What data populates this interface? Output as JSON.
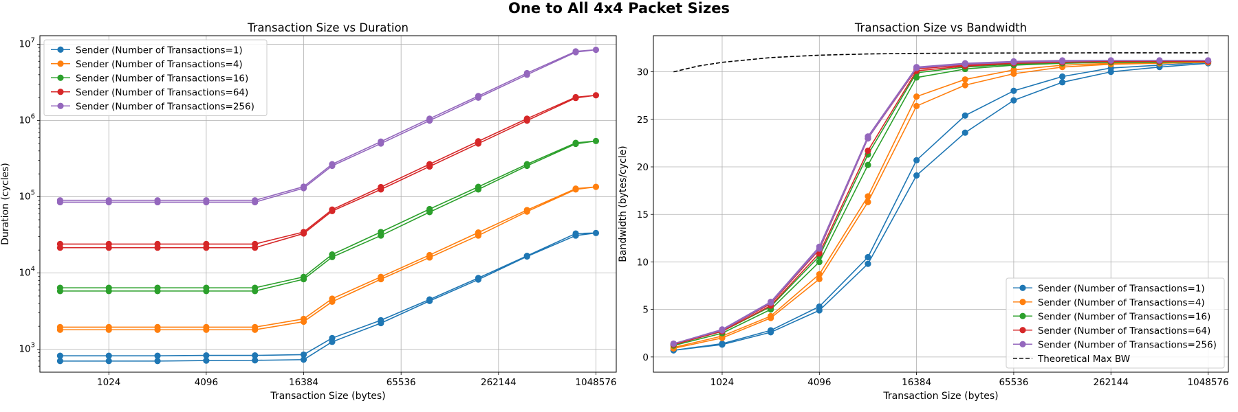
{
  "figure": {
    "title": "One to All 4x4 Packet Sizes"
  },
  "chart_data": [
    {
      "type": "line",
      "title": "Transaction Size vs Duration",
      "xlabel": "Transaction Size (bytes)",
      "ylabel": "Duration (cycles)",
      "xscale": "log2",
      "yscale": "log10",
      "xlim": [
        384,
        1400000
      ],
      "ylim": [
        500,
        13000000
      ],
      "xticks": [
        1024,
        4096,
        16384,
        65536,
        262144,
        1048576
      ],
      "xtick_labels": [
        "1024",
        "4096",
        "16384",
        "65536",
        "262144",
        "1048576"
      ],
      "yticks": [
        1000,
        10000,
        100000,
        1000000,
        10000000
      ],
      "ytick_labels": [
        {
          "base": "10",
          "exp": "3"
        },
        {
          "base": "10",
          "exp": "4"
        },
        {
          "base": "10",
          "exp": "5"
        },
        {
          "base": "10",
          "exp": "6"
        },
        {
          "base": "10",
          "exp": "7"
        }
      ],
      "grid": true,
      "legend_position": "upper left",
      "series": [
        {
          "name": "Sender (Number of Transactions=1)",
          "color": "#1f77b4",
          "x": [
            512,
            1024,
            2048,
            4096,
            8192,
            16384,
            24576,
            49152,
            98304,
            196608,
            393216,
            786432,
            1048576,
            786432,
            393216,
            196608,
            98304,
            49152,
            24576,
            16384,
            8192,
            4096,
            2048,
            1024,
            512
          ],
          "y": [
            700,
            700,
            700,
            710,
            715,
            730,
            1250,
            2200,
            4300,
            8200,
            16500,
            31000,
            33500,
            33000,
            16800,
            8600,
            4500,
            2400,
            1400,
            850,
            830,
            830,
            820,
            820,
            820
          ]
        },
        {
          "name": "Sender (Number of Transactions=4)",
          "color": "#ff7f0e",
          "x": [
            512,
            1024,
            2048,
            4096,
            8192,
            16384,
            24576,
            49152,
            98304,
            196608,
            393216,
            786432,
            1048576,
            786432,
            393216,
            196608,
            98304,
            49152,
            24576,
            16384,
            8192,
            4096,
            2048,
            1024,
            512
          ],
          "y": [
            1800,
            1800,
            1800,
            1800,
            1800,
            2300,
            4200,
            8300,
            16000,
            31000,
            64000,
            125000,
            135000,
            128000,
            67000,
            34000,
            17200,
            8900,
            4600,
            2500,
            1950,
            1950,
            1950,
            1950,
            1950
          ]
        },
        {
          "name": "Sender (Number of Transactions=16)",
          "color": "#2ca02c",
          "x": [
            512,
            1024,
            2048,
            4096,
            8192,
            16384,
            24576,
            49152,
            98304,
            196608,
            393216,
            786432,
            1048576,
            786432,
            393216,
            196608,
            98304,
            49152,
            24576,
            16384,
            8192,
            4096,
            2048,
            1024,
            512
          ],
          "y": [
            5800,
            5800,
            5800,
            5800,
            5800,
            8300,
            16200,
            31000,
            63000,
            125000,
            255000,
            495000,
            540000,
            510000,
            268000,
            135000,
            69000,
            34500,
            17500,
            8900,
            6400,
            6400,
            6400,
            6400,
            6400
          ]
        },
        {
          "name": "Sender (Number of Transactions=64)",
          "color": "#d62728",
          "x": [
            512,
            1024,
            2048,
            4096,
            8192,
            16384,
            24576,
            49152,
            98304,
            196608,
            393216,
            786432,
            1048576,
            786432,
            393216,
            196608,
            98304,
            49152,
            24576,
            16384,
            8192,
            4096,
            2048,
            1024,
            512
          ],
          "y": [
            21500,
            21500,
            21500,
            21500,
            21500,
            33000,
            65000,
            125000,
            250000,
            500000,
            1000000,
            1980000,
            2150000,
            2030000,
            1060000,
            535000,
            268000,
            134000,
            68000,
            34500,
            24000,
            24000,
            24000,
            24000,
            24000
          ]
        },
        {
          "name": "Sender (Number of Transactions=256)",
          "color": "#9467bd",
          "x": [
            512,
            1024,
            2048,
            4096,
            8192,
            16384,
            24576,
            49152,
            98304,
            196608,
            393216,
            786432,
            1048576,
            786432,
            393216,
            196608,
            98304,
            49152,
            24576,
            16384,
            8192,
            4096,
            2048,
            1024,
            512
          ],
          "y": [
            85000,
            85000,
            85000,
            85000,
            85000,
            130000,
            255000,
            500000,
            1000000,
            2000000,
            4000000,
            7900000,
            8500000,
            8100000,
            4200000,
            2100000,
            1060000,
            530000,
            268000,
            136000,
            90000,
            90000,
            90000,
            90000,
            90000
          ]
        }
      ]
    },
    {
      "type": "line",
      "title": "Transaction Size vs Bandwidth",
      "xlabel": "Transaction Size (bytes)",
      "ylabel": "Bandwidth (bytes/cycle)",
      "xscale": "log2",
      "yscale": "linear",
      "xlim": [
        384,
        1400000
      ],
      "ylim": [
        -1.6,
        33.8
      ],
      "xticks": [
        1024,
        4096,
        16384,
        65536,
        262144,
        1048576
      ],
      "xtick_labels": [
        "1024",
        "4096",
        "16384",
        "65536",
        "262144",
        "1048576"
      ],
      "yticks": [
        0,
        5,
        10,
        15,
        20,
        25,
        30
      ],
      "ytick_labels": [
        "0",
        "5",
        "10",
        "15",
        "20",
        "25",
        "30"
      ],
      "grid": true,
      "legend_position": "lower right",
      "series": [
        {
          "name": "Sender (Number of Transactions=1)",
          "color": "#1f77b4",
          "x": [
            512,
            1024,
            2048,
            4096,
            8192,
            16384,
            32768,
            65536,
            131072,
            262144,
            524288,
            1048576,
            1048576,
            524288,
            262144,
            131072,
            65536,
            32768,
            16384,
            8192,
            4096,
            2048,
            1024,
            512
          ],
          "y": [
            0.7,
            1.3,
            2.6,
            4.9,
            9.8,
            19.1,
            23.6,
            27.0,
            28.9,
            30.0,
            30.5,
            30.9,
            31.0,
            30.7,
            30.4,
            29.5,
            28.0,
            25.4,
            20.7,
            10.5,
            5.3,
            2.8,
            1.4,
            0.7
          ]
        },
        {
          "name": "Sender (Number of Transactions=4)",
          "color": "#ff7f0e",
          "x": [
            512,
            1024,
            2048,
            4096,
            8192,
            16384,
            32768,
            65536,
            131072,
            262144,
            524288,
            1048576,
            1048576,
            524288,
            262144,
            131072,
            65536,
            32768,
            16384,
            8192,
            4096,
            2048,
            1024,
            512
          ],
          "y": [
            0.9,
            2.0,
            4.1,
            8.2,
            16.3,
            26.4,
            28.6,
            29.8,
            30.5,
            30.8,
            30.9,
            31.0,
            31.0,
            31.0,
            30.9,
            30.7,
            30.2,
            29.2,
            27.4,
            16.9,
            8.7,
            4.3,
            2.2,
            1.0
          ]
        },
        {
          "name": "Sender (Number of Transactions=16)",
          "color": "#2ca02c",
          "x": [
            512,
            1024,
            2048,
            4096,
            8192,
            16384,
            32768,
            65536,
            131072,
            262144,
            524288,
            1048576,
            1048576,
            524288,
            262144,
            131072,
            65536,
            32768,
            16384,
            8192,
            4096,
            2048,
            1024,
            512
          ],
          "y": [
            1.2,
            2.5,
            5.0,
            10.0,
            20.2,
            29.4,
            30.3,
            30.7,
            30.9,
            31.0,
            31.0,
            31.1,
            31.1,
            31.1,
            31.0,
            31.0,
            30.8,
            30.5,
            29.9,
            21.3,
            10.6,
            5.3,
            2.7,
            1.3
          ]
        },
        {
          "name": "Sender (Number of Transactions=64)",
          "color": "#d62728",
          "x": [
            512,
            1024,
            2048,
            4096,
            8192,
            16384,
            32768,
            65536,
            131072,
            262144,
            524288,
            1048576,
            1048576,
            524288,
            262144,
            131072,
            65536,
            32768,
            16384,
            8192,
            4096,
            2048,
            1024,
            512
          ],
          "y": [
            1.3,
            2.7,
            5.4,
            10.9,
            21.7,
            30.1,
            30.6,
            30.9,
            31.0,
            31.1,
            31.1,
            31.1,
            31.1,
            31.1,
            31.1,
            31.1,
            31.0,
            30.7,
            30.3,
            23.0,
            11.3,
            5.6,
            2.8,
            1.4
          ]
        },
        {
          "name": "Sender (Number of Transactions=256)",
          "color": "#9467bd",
          "x": [
            512,
            1024,
            2048,
            4096,
            8192,
            16384,
            32768,
            65536,
            131072,
            262144,
            524288,
            1048576,
            1048576,
            524288,
            262144,
            131072,
            65536,
            32768,
            16384,
            8192,
            4096,
            2048,
            1024,
            512
          ],
          "y": [
            1.4,
            2.8,
            5.7,
            11.4,
            23.0,
            30.4,
            30.8,
            31.0,
            31.1,
            31.2,
            31.2,
            31.2,
            31.2,
            31.2,
            31.2,
            31.2,
            31.1,
            30.9,
            30.5,
            23.2,
            11.6,
            5.8,
            2.9,
            1.4
          ]
        },
        {
          "name": "Theoretical Max BW",
          "color": "#000000",
          "dashed": true,
          "markers": false,
          "x": [
            512,
            724,
            1024,
            2048,
            4096,
            8192,
            16384,
            32768,
            65536,
            131072,
            262144,
            524288,
            1048576
          ],
          "y": [
            30.0,
            30.6,
            31.0,
            31.5,
            31.75,
            31.88,
            31.94,
            31.97,
            31.98,
            31.99,
            32.0,
            32.0,
            32.0
          ]
        }
      ]
    }
  ]
}
